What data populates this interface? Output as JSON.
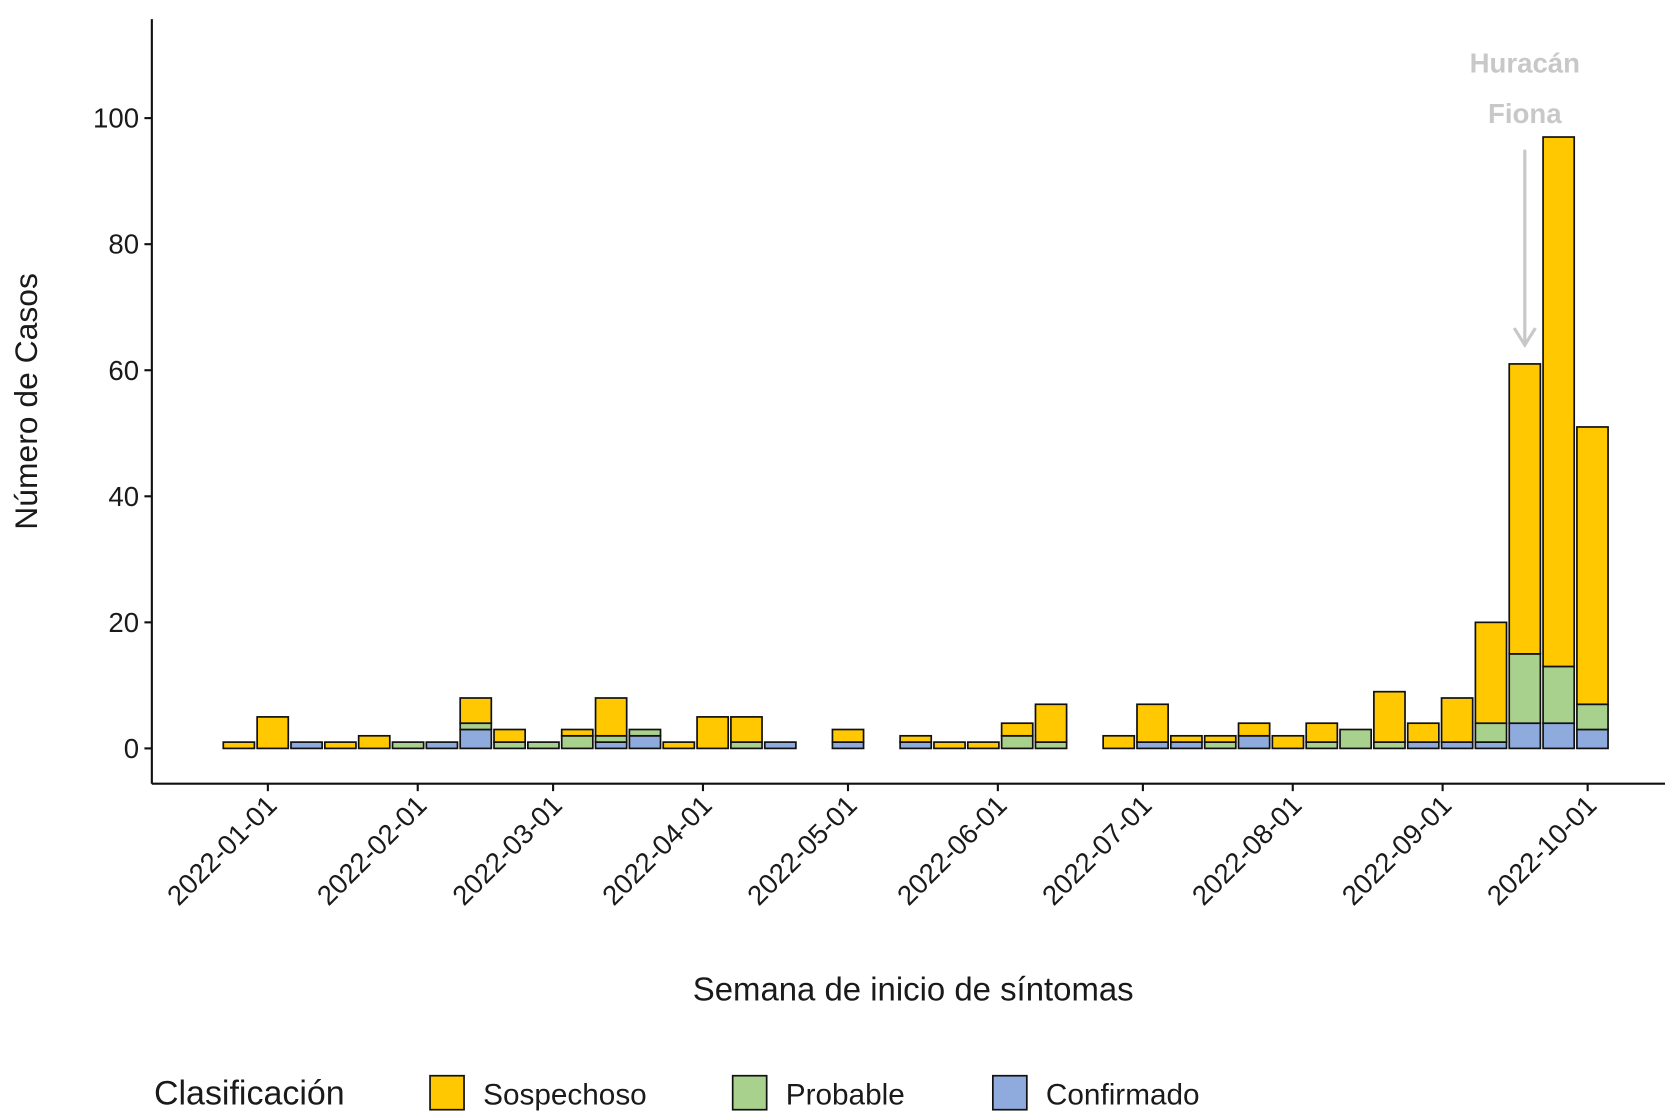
{
  "chart_data": {
    "type": "bar",
    "stacked": true,
    "x_label": "Semana de inicio de síntomas",
    "y_label": "Número de Casos",
    "legend_title": "Clasificación",
    "legend": "bottom-left",
    "grid": false,
    "x": [
      "2021-12-26",
      "2022-01-02",
      "2022-01-09",
      "2022-01-16",
      "2022-01-23",
      "2022-01-30",
      "2022-02-06",
      "2022-02-13",
      "2022-02-20",
      "2022-02-27",
      "2022-03-06",
      "2022-03-13",
      "2022-03-20",
      "2022-03-27",
      "2022-04-03",
      "2022-04-10",
      "2022-04-17",
      "2022-04-24",
      "2022-05-01",
      "2022-05-08",
      "2022-05-15",
      "2022-05-22",
      "2022-05-29",
      "2022-06-05",
      "2022-06-12",
      "2022-06-19",
      "2022-06-26",
      "2022-07-03",
      "2022-07-10",
      "2022-07-17",
      "2022-07-24",
      "2022-07-31",
      "2022-08-07",
      "2022-08-14",
      "2022-08-21",
      "2022-08-28",
      "2022-09-04",
      "2022-09-11",
      "2022-09-18",
      "2022-09-25",
      "2022-10-02"
    ],
    "series": [
      {
        "name": "Sospechoso",
        "color": "#FFC800",
        "values": [
          1,
          5,
          0,
          1,
          2,
          0,
          0,
          4,
          2,
          0,
          1,
          6,
          0,
          1,
          5,
          4,
          0,
          0,
          2,
          0,
          1,
          1,
          1,
          2,
          6,
          0,
          2,
          6,
          1,
          1,
          2,
          2,
          3,
          0,
          8,
          3,
          7,
          16,
          46,
          84,
          44
        ]
      },
      {
        "name": "Probable",
        "color": "#A9D18E",
        "values": [
          0,
          0,
          0,
          0,
          0,
          1,
          0,
          1,
          1,
          1,
          2,
          1,
          1,
          0,
          0,
          1,
          0,
          0,
          0,
          0,
          0,
          0,
          0,
          2,
          1,
          0,
          0,
          0,
          0,
          1,
          0,
          0,
          1,
          3,
          1,
          0,
          0,
          3,
          11,
          9,
          4
        ]
      },
      {
        "name": "Confirmado",
        "color": "#8FAADC",
        "values": [
          0,
          0,
          1,
          0,
          0,
          0,
          1,
          3,
          0,
          0,
          0,
          1,
          2,
          0,
          0,
          0,
          1,
          0,
          1,
          0,
          1,
          0,
          0,
          0,
          0,
          0,
          0,
          1,
          1,
          0,
          2,
          0,
          0,
          0,
          0,
          1,
          1,
          1,
          4,
          4,
          3
        ]
      }
    ],
    "xlim": [
      "2021-12-08",
      "2022-10-17"
    ],
    "xticks": [
      "2022-01-01",
      "2022-02-01",
      "2022-03-01",
      "2022-04-01",
      "2022-05-01",
      "2022-06-01",
      "2022-07-01",
      "2022-08-01",
      "2022-09-01",
      "2022-10-01"
    ],
    "ylim": [
      -5.6,
      115.7
    ],
    "yticks": [
      0,
      20,
      40,
      60,
      80,
      100
    ],
    "annotation": {
      "lines": [
        "Huracán",
        "Fiona"
      ],
      "x": "2022-09-18",
      "y_start": 95,
      "y_end": 64,
      "color": "#c8c8c8"
    }
  }
}
